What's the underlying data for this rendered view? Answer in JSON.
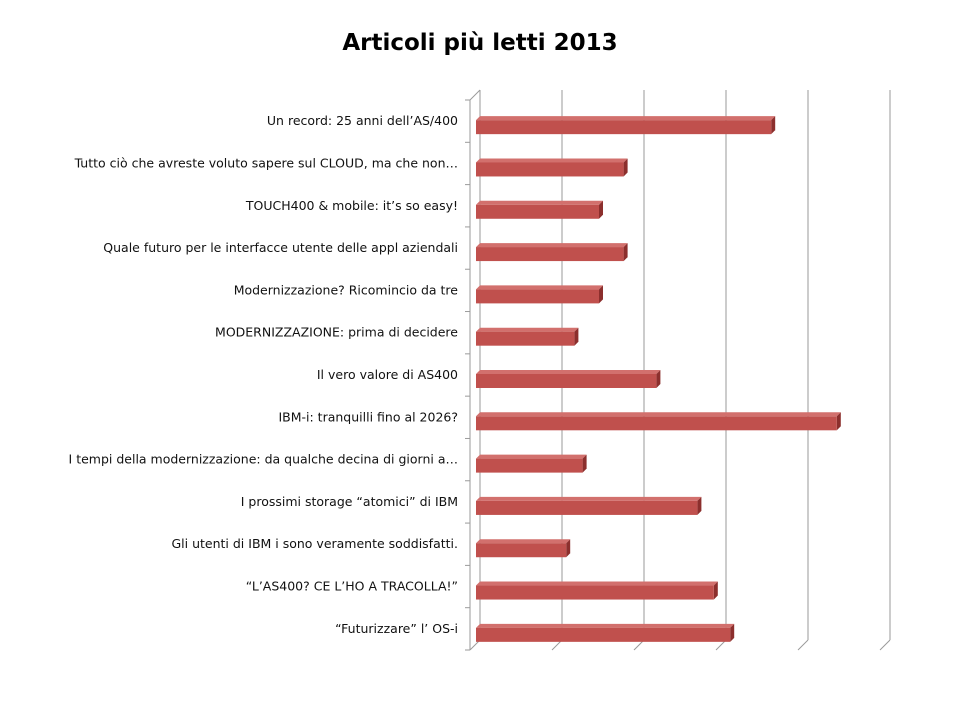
{
  "chart_data": {
    "type": "bar",
    "orientation": "horizontal",
    "title": "Articoli più letti 2013",
    "categories": [
      "Un record: 25 anni dell’AS/400",
      "Tutto ciò che avreste voluto sapere sul CLOUD, ma che non…",
      "TOUCH400 & mobile: it’s so easy!",
      "Quale futuro per le interfacce utente delle appl aziendali",
      "Modernizzazione? Ricomincio da tre",
      "MODERNIZZAZIONE: prima di decidere",
      "Il vero valore di AS400",
      "IBM-i: tranquilli fino al 2026?",
      "I tempi della modernizzazione: da qualche decina di giorni a…",
      "I prossimi storage “atomici” di IBM",
      "Gli utenti di IBM i sono veramente soddisfatti.",
      "“L’AS400? CE L’HO A TRACOLLA!”",
      "“Futurizzare” l’ OS-i"
    ],
    "values": [
      3.6,
      1.8,
      1.5,
      1.8,
      1.5,
      1.2,
      2.2,
      4.4,
      1.3,
      2.7,
      1.1,
      2.9,
      3.1
    ],
    "xlim": [
      0,
      5
    ],
    "grid": true,
    "legend": "none",
    "bar_color": "#c0504d",
    "bar_dark": "#8c2f2d",
    "bar_light": "#d2706d",
    "xlabel": "",
    "ylabel": ""
  }
}
